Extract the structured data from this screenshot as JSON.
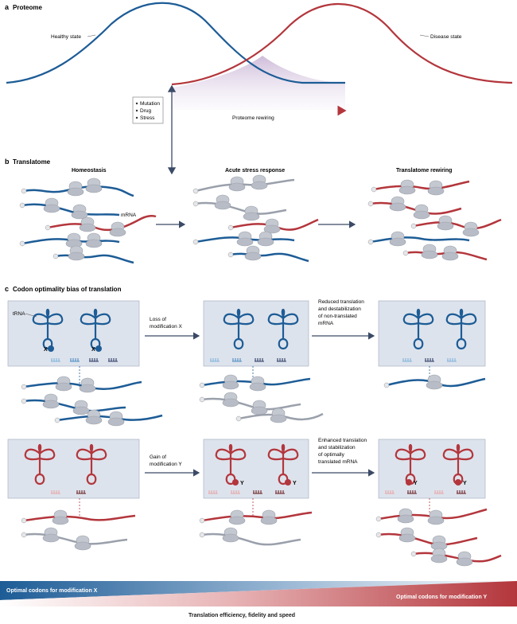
{
  "panel_a": {
    "letter": "a",
    "title": "Proteome",
    "healthy_label": "Healthy state",
    "disease_label": "Disease state",
    "stressors": [
      "Mutation",
      "Drug",
      "Stress"
    ],
    "arrow_label": "Proteome rewiring"
  },
  "panel_b": {
    "letter": "b",
    "title": "Translatome",
    "stages": [
      "Homeostasis",
      "Acute stress response",
      "Translatome rewiring"
    ],
    "mrna_label": "mRNA"
  },
  "panel_c": {
    "letter": "c",
    "title": "Codon optimality bias of translation",
    "trna_label": "tRNA",
    "mark_x": "X",
    "mark_y": "Y",
    "top_arrow1": [
      "Loss of",
      "modification X"
    ],
    "top_arrow2": [
      "Reduced translation",
      "and destabilization",
      "of non-translated",
      "mRNA"
    ],
    "bottom_arrow1": [
      "Gain of",
      "modification Y"
    ],
    "bottom_arrow2": [
      "Enhanced translation",
      "and stabilization",
      "of optimally",
      "translated mRNA"
    ]
  },
  "footer": {
    "left_label": "Optimal codons for modification X",
    "right_label": "Optimal codons for modification Y",
    "caption": "Translation efficiency, fidelity and speed"
  },
  "colors": {
    "blue": "#1d5c96",
    "red": "#b3363c",
    "gray": "#9aa0ab",
    "box_fill": "#dde3ec",
    "ribosome": "#c4c8d0"
  }
}
